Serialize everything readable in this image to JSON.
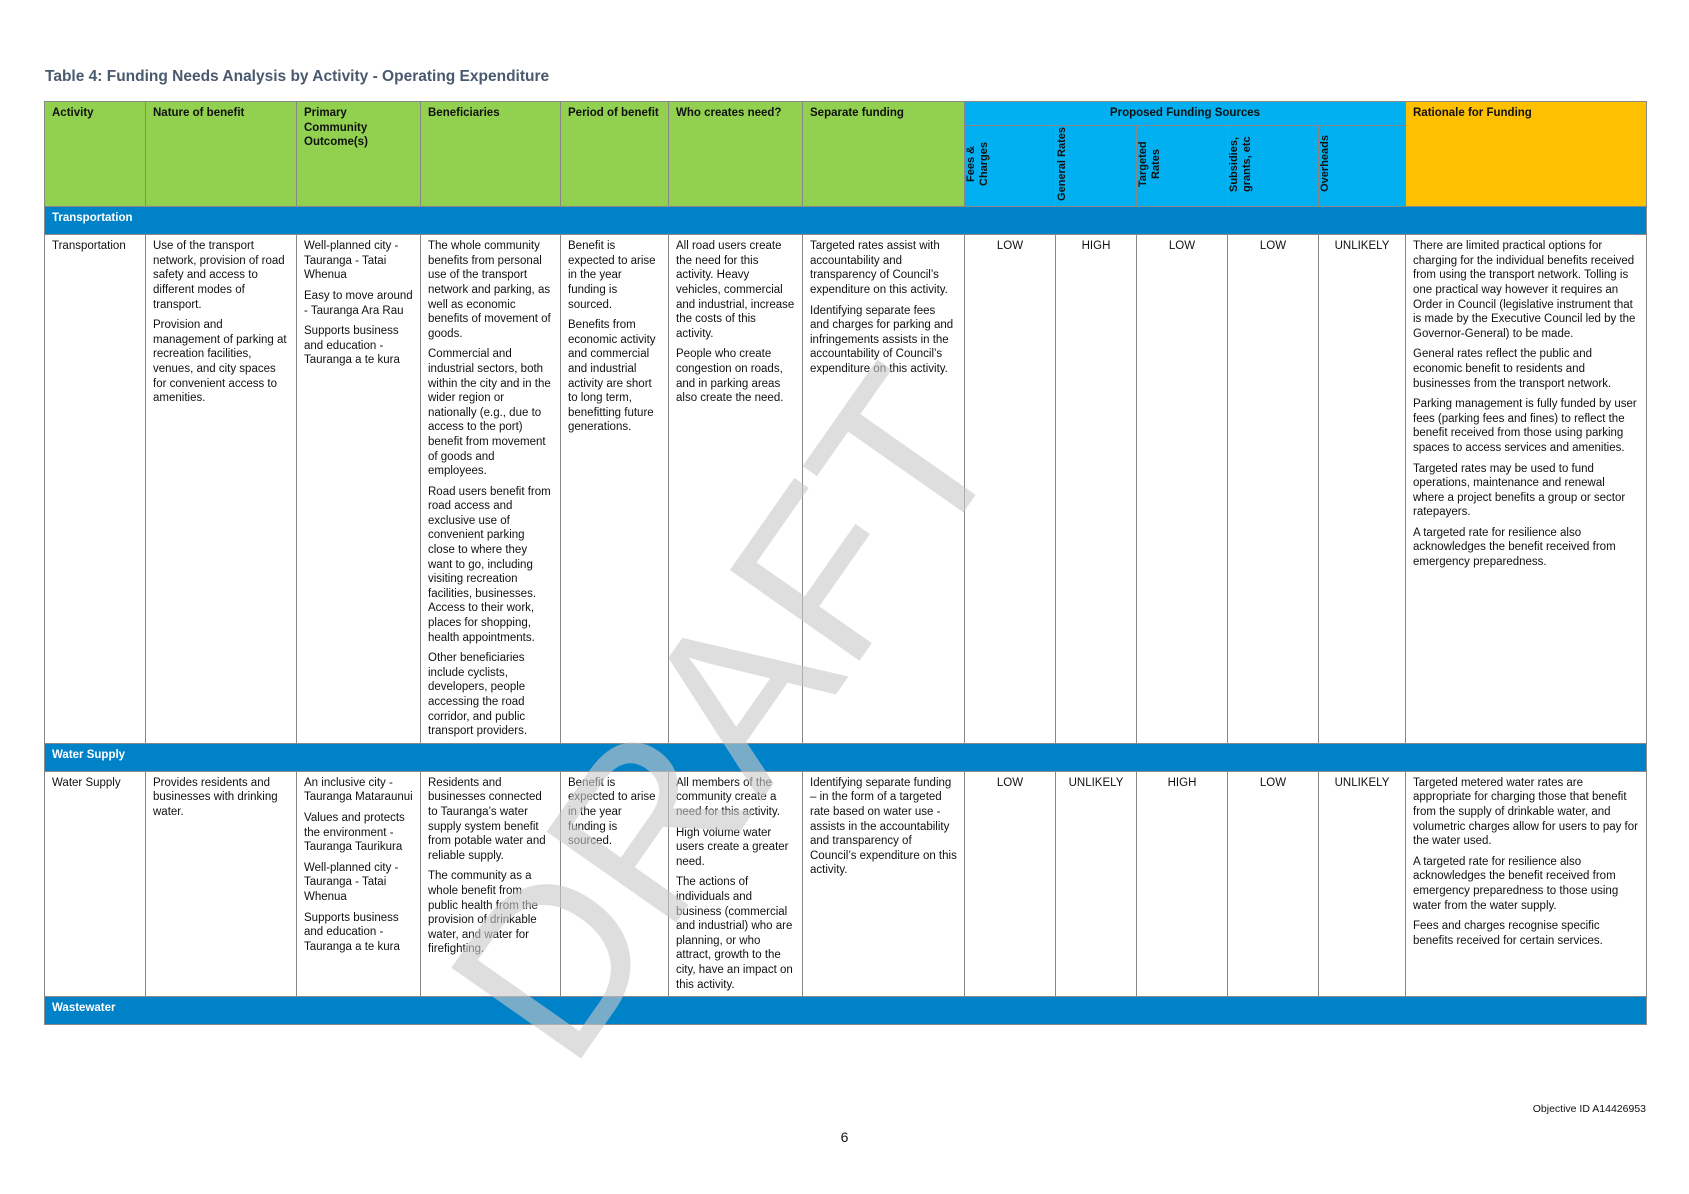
{
  "title": "Table 4: Funding Needs Analysis by Activity - Operating Expenditure",
  "watermark": "DRAFT",
  "headers": {
    "activity": "Activity",
    "nature": "Nature of benefit",
    "outcomes": "Primary Community Outcome(s)",
    "beneficiaries": "Beneficiaries",
    "period": "Period of benefit",
    "who": "Who creates need?",
    "separate": "Separate funding",
    "sources": "Proposed Funding Sources",
    "rationale": "Rationale for Funding",
    "src_fees": "Fees & Charges",
    "src_general": "General Rates",
    "src_targeted": "Targeted Rates",
    "src_subsidies": "Subsidies, grants, etc",
    "src_overheads": "Overheads"
  },
  "sections": {
    "transportation": "Transportation",
    "water_supply": "Water Supply",
    "wastewater": "Wastewater"
  },
  "rows": {
    "transportation": {
      "activity": "Transportation",
      "nature": [
        "Use of the transport network, provision of road safety and access to different modes of transport.",
        "Provision and management of parking at recreation facilities, venues, and city spaces for convenient access to amenities."
      ],
      "outcomes": [
        "Well-planned city - Tauranga - Tatai Whenua",
        "Easy to move around - Tauranga Ara Rau",
        "Supports business and education - Tauranga a te kura"
      ],
      "beneficiaries": [
        "The whole community benefits from personal use of the transport network and parking, as well as economic benefits of movement of goods.",
        "Commercial and industrial sectors, both within the city and in the wider region or nationally (e.g., due to access to the port) benefit from movement of goods and employees.",
        "Road users benefit from road access and exclusive use of convenient parking close to where they want to go, including visiting recreation facilities, businesses. Access to their work, places for shopping, health appointments.",
        "Other beneficiaries include cyclists, developers, people accessing the road corridor, and public transport providers."
      ],
      "period": [
        "Benefit is expected to arise in the year funding is sourced.",
        "Benefits from economic activity and commercial and industrial activity are short to long term, benefitting future generations."
      ],
      "who": [
        "All road users create the need for this activity. Heavy vehicles, commercial and industrial, increase the costs of this activity.",
        "People who create congestion on roads, and in parking areas also create the need."
      ],
      "separate": [
        "Targeted rates assist with accountability and transparency of Council’s expenditure on this activity.",
        "Identifying separate fees and charges for parking and infringements assists in the accountability of Council’s expenditure on this activity."
      ],
      "fees": "LOW",
      "general": "HIGH",
      "targeted": "LOW",
      "subsidies": "LOW",
      "overheads": "UNLIKELY",
      "rationale": [
        "There are limited practical options for charging for the individual benefits received from using the transport network. Tolling is one practical way however it requires an Order in Council (legislative instrument that is made by the Executive Council led by the Governor-General) to be made.",
        "General rates reflect the public and economic benefit to residents and businesses from the transport network.",
        "Parking management is fully funded by user fees (parking fees and fines) to reflect the benefit received from those using parking spaces to access services and amenities.",
        "Targeted rates may be used to fund operations, maintenance and renewal where a project benefits a group or sector ratepayers.",
        "A targeted rate for resilience also acknowledges the benefit received from emergency preparedness."
      ]
    },
    "water_supply": {
      "activity": "Water Supply",
      "nature": [
        "Provides residents and businesses with drinking water."
      ],
      "outcomes": [
        "An inclusive city - Tauranga Mataraunui",
        "Values and protects the environment - Tauranga Taurikura",
        "Well-planned city - Tauranga - Tatai Whenua",
        "Supports business and education - Tauranga a te kura"
      ],
      "beneficiaries": [
        "Residents and businesses connected to Tauranga’s water supply system benefit from potable water and reliable supply.",
        "The community as a whole benefit from public health from the provision of drinkable water, and water for firefighting."
      ],
      "period": [
        "Benefit is expected to arise in the year funding is sourced."
      ],
      "who": [
        "All members of the community create a need for this activity.",
        "High volume water users create a greater need.",
        "The actions of individuals and business (commercial and industrial) who are planning, or who attract, growth to the city, have an impact on this activity."
      ],
      "separate": [
        "Identifying separate funding – in the form of a targeted rate based on water use - assists in the accountability and transparency of Council’s expenditure on this activity."
      ],
      "fees": "LOW",
      "general": "UNLIKELY",
      "targeted": "HIGH",
      "subsidies": "LOW",
      "overheads": "UNLIKELY",
      "rationale": [
        "Targeted metered water rates are appropriate for charging those that benefit from the supply of drinkable water, and volumetric charges allow for users to pay for the water used.",
        "A targeted rate for resilience also acknowledges the benefit received from emergency preparedness to those using water from the water supply.",
        "Fees and charges recognise specific benefits received for certain services."
      ]
    }
  },
  "footer": {
    "objective_id": "Objective ID A14426953",
    "page_number": "6"
  }
}
